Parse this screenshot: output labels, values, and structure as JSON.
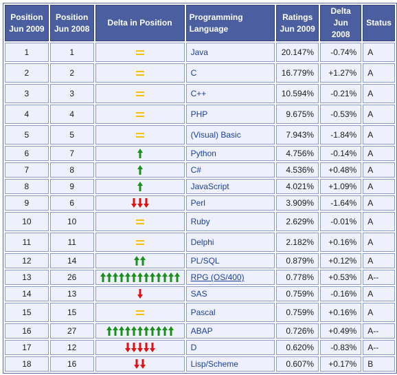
{
  "columns": [
    "Position Jun 2009",
    "Position Jun 2008",
    "Delta in Position",
    "Programming Language",
    "Ratings Jun 2009",
    "Delta Jun 2008",
    "Status"
  ],
  "column_lines": [
    [
      "Position",
      "Jun 2009"
    ],
    [
      "Position",
      "Jun 2008"
    ],
    [
      "Delta in Position"
    ],
    [
      "Programming Language"
    ],
    [
      "Ratings",
      "Jun 2009"
    ],
    [
      "Delta",
      "Jun 2008"
    ],
    [
      "Status"
    ]
  ],
  "colors": {
    "header_bg": "#4a5ea0",
    "cell_bg": "#eef1fb",
    "up_arrow": "#1a8f1a",
    "down_arrow": "#e01010",
    "equal_mark": "#f2c200",
    "link": "#1a3fa0"
  },
  "icon_names": {
    "equal": "equal-icon",
    "up": "green-up-arrow-icon",
    "down": "red-down-arrow-icon"
  },
  "rows": [
    {
      "pos2009": "1",
      "pos2008": "1",
      "delta_type": "equal",
      "delta_count": 1,
      "language": "Java",
      "rating": "20.147%",
      "delta": "-0.74%",
      "status": "A"
    },
    {
      "pos2009": "2",
      "pos2008": "2",
      "delta_type": "equal",
      "delta_count": 1,
      "language": "C",
      "rating": "16.779%",
      "delta": "+1.27%",
      "status": "A"
    },
    {
      "pos2009": "3",
      "pos2008": "3",
      "delta_type": "equal",
      "delta_count": 1,
      "language": "C++",
      "rating": "10.594%",
      "delta": "-0.21%",
      "status": "A"
    },
    {
      "pos2009": "4",
      "pos2008": "4",
      "delta_type": "equal",
      "delta_count": 1,
      "language": "PHP",
      "rating": "9.675%",
      "delta": "-0.53%",
      "status": "A"
    },
    {
      "pos2009": "5",
      "pos2008": "5",
      "delta_type": "equal",
      "delta_count": 1,
      "language": "(Visual) Basic",
      "rating": "7.943%",
      "delta": "-1.84%",
      "status": "A"
    },
    {
      "pos2009": "6",
      "pos2008": "7",
      "delta_type": "up",
      "delta_count": 1,
      "language": "Python",
      "rating": "4.756%",
      "delta": "-0.14%",
      "status": "A"
    },
    {
      "pos2009": "7",
      "pos2008": "8",
      "delta_type": "up",
      "delta_count": 1,
      "language": "C#",
      "rating": "4.536%",
      "delta": "+0.48%",
      "status": "A"
    },
    {
      "pos2009": "8",
      "pos2008": "9",
      "delta_type": "up",
      "delta_count": 1,
      "language": "JavaScript",
      "rating": "4.021%",
      "delta": "+1.09%",
      "status": "A"
    },
    {
      "pos2009": "9",
      "pos2008": "6",
      "delta_type": "down",
      "delta_count": 3,
      "language": "Perl",
      "rating": "3.909%",
      "delta": "-1.64%",
      "status": "A"
    },
    {
      "pos2009": "10",
      "pos2008": "10",
      "delta_type": "equal",
      "delta_count": 1,
      "language": "Ruby",
      "rating": "2.629%",
      "delta": "-0.01%",
      "status": "A"
    },
    {
      "pos2009": "11",
      "pos2008": "11",
      "delta_type": "equal",
      "delta_count": 1,
      "language": "Delphi",
      "rating": "2.182%",
      "delta": "+0.16%",
      "status": "A"
    },
    {
      "pos2009": "12",
      "pos2008": "14",
      "delta_type": "up",
      "delta_count": 2,
      "language": "PL/SQL",
      "rating": "0.879%",
      "delta": "+0.12%",
      "status": "A"
    },
    {
      "pos2009": "13",
      "pos2008": "26",
      "delta_type": "up",
      "delta_count": 13,
      "language": "RPG (OS/400)",
      "underline": true,
      "rating": "0.778%",
      "delta": "+0.53%",
      "status": "A--"
    },
    {
      "pos2009": "14",
      "pos2008": "13",
      "delta_type": "down",
      "delta_count": 1,
      "language": "SAS",
      "rating": "0.759%",
      "delta": "-0.16%",
      "status": "A"
    },
    {
      "pos2009": "15",
      "pos2008": "15",
      "delta_type": "equal",
      "delta_count": 1,
      "language": "Pascal",
      "rating": "0.759%",
      "delta": "+0.16%",
      "status": "A"
    },
    {
      "pos2009": "16",
      "pos2008": "27",
      "delta_type": "up",
      "delta_count": 11,
      "language": "ABAP",
      "rating": "0.726%",
      "delta": "+0.49%",
      "status": "A--"
    },
    {
      "pos2009": "17",
      "pos2008": "12",
      "delta_type": "down",
      "delta_count": 5,
      "language": "D",
      "rating": "0.620%",
      "delta": "-0.83%",
      "status": "A--"
    },
    {
      "pos2009": "18",
      "pos2008": "16",
      "delta_type": "down",
      "delta_count": 2,
      "language": "Lisp/Scheme",
      "rating": "0.607%",
      "delta": "+0.17%",
      "status": "B"
    }
  ]
}
